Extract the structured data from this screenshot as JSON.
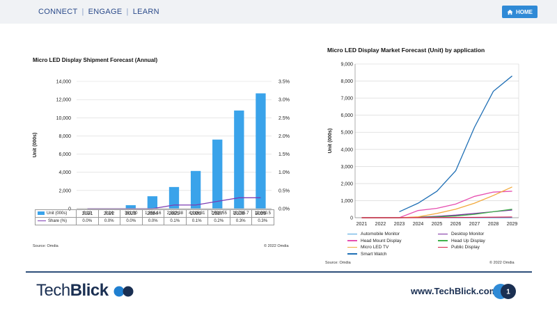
{
  "nav": {
    "items": [
      "CONNECT",
      "ENGAGE",
      "LEARN"
    ],
    "separator": "|",
    "home_label": "HOME"
  },
  "left_chart": {
    "title": "Micro LED Display Shipment Forecast (Annual)",
    "ylabel": "Unit (000s)",
    "source": "Source: Omdia",
    "copyright": "© 2022 Omdia",
    "table": {
      "rows": [
        {
          "label": "Unit (000s)",
          "values": [
            "0.12",
            "0.14",
            "381.90",
            "1,366.16",
            "2,382.38",
            "4,146.81",
            "7,598.55",
            "10,795.7",
            "12,680.5"
          ]
        },
        {
          "label": "Share (%)",
          "values": [
            "0.0%",
            "0.0%",
            "0.0%",
            "0.0%",
            "0.1%",
            "0.1%",
            "0.2%",
            "0.3%",
            "0.3%"
          ]
        }
      ]
    }
  },
  "right_chart": {
    "title": "Micro LED Display Market Forecast (Unit) by application",
    "ylabel": "Unit (000s)",
    "source": "Source: Omdia",
    "copyright": "© 2022 Omdia"
  },
  "footer": {
    "logo_tech": "Tech",
    "logo_blick": "Blick",
    "url": "www.TechBlick.com",
    "page_number": "1"
  },
  "colors": {
    "accent": "#2f8ad6",
    "bar": "#3aa3ea",
    "share_line": "#7d3cb3",
    "navy": "#1a2f52"
  },
  "chart_data": [
    {
      "type": "bar",
      "title": "Micro LED Display Shipment Forecast (Annual)",
      "xlabel": "",
      "ylabel": "Unit (000s)",
      "categories": [
        "2021",
        "2022",
        "2023",
        "2024",
        "2025",
        "2026",
        "2027",
        "2028",
        "2029"
      ],
      "series": [
        {
          "name": "Unit (000s)",
          "axis": "left",
          "kind": "bar",
          "color": "#3aa3ea",
          "values": [
            0.12,
            0.14,
            381.9,
            1366.16,
            2382.38,
            4146.81,
            7598.55,
            10795.7,
            12680.5
          ]
        },
        {
          "name": "Share (%)",
          "axis": "right",
          "kind": "line",
          "color": "#7d3cb3",
          "values": [
            0.0,
            0.0,
            0.0,
            0.0,
            0.1,
            0.1,
            0.2,
            0.3,
            0.3
          ]
        }
      ],
      "ylim": [
        0,
        14000
      ],
      "yticks": [
        "0",
        "2,000",
        "4,000",
        "6,000",
        "8,000",
        "10,000",
        "12,000",
        "14,000"
      ],
      "y2lim": [
        0,
        3.5
      ],
      "y2ticks": [
        "0.0%",
        "0.5%",
        "1.0%",
        "1.5%",
        "2.0%",
        "2.5%",
        "3.0%",
        "3.5%"
      ],
      "grid": true,
      "legend": "data table"
    },
    {
      "type": "line",
      "title": "Micro LED Display Market Forecast (Unit) by application",
      "xlabel": "",
      "ylabel": "Unit (000s)",
      "categories": [
        "2021",
        "2022",
        "2023",
        "2024",
        "2025",
        "2026",
        "2027",
        "2028",
        "2029"
      ],
      "ylim": [
        0,
        9000
      ],
      "yticks": [
        "0",
        "1,000",
        "2,000",
        "3,000",
        "4,000",
        "5,000",
        "6,000",
        "7,000",
        "8,000",
        "9,000"
      ],
      "grid": true,
      "legend": "bottom",
      "series": [
        {
          "name": "Automobile Monitor",
          "color": "#4aa3df",
          "values": [
            0,
            0,
            0,
            0,
            0,
            0,
            0,
            0,
            0
          ]
        },
        {
          "name": "Desktop Monitor",
          "color": "#7a2ca0",
          "values": [
            0,
            0,
            0,
            30,
            80,
            150,
            250,
            350,
            450
          ]
        },
        {
          "name": "Head Mount Display",
          "color": "#e64fb0",
          "values": [
            0,
            0,
            0,
            420,
            550,
            800,
            1250,
            1500,
            1550
          ]
        },
        {
          "name": "Head Up Display",
          "color": "#3fb24a",
          "values": [
            0,
            0,
            0,
            20,
            50,
            100,
            200,
            350,
            500
          ]
        },
        {
          "name": "Micro LED TV",
          "color": "#f2a93b",
          "values": [
            0,
            0,
            0,
            50,
            250,
            500,
            850,
            1300,
            1800
          ]
        },
        {
          "name": "Public Display",
          "color": "#d62049",
          "values": [
            0,
            0,
            0,
            5,
            10,
            15,
            20,
            30,
            40
          ]
        },
        {
          "name": "Smart Watch",
          "color": "#1f6fb5",
          "values": [
            null,
            null,
            350,
            850,
            1550,
            2750,
            5300,
            7400,
            8300
          ]
        }
      ]
    }
  ]
}
